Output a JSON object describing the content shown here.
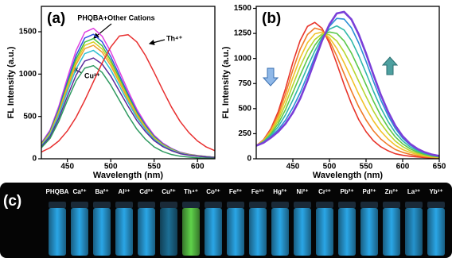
{
  "chart_data": [
    {
      "type": "line",
      "panel_label": "(a)",
      "x_label": "Wavelength (nm)",
      "y_label": "FL Intensity (a.u.)",
      "xlim": [
        420,
        620
      ],
      "ylim": [
        0,
        1800
      ],
      "xticks": [
        450,
        500,
        550,
        600
      ],
      "yticks": [
        0,
        500,
        1000,
        1500
      ],
      "annotations": [
        "PHQBA+Other Cations",
        "Th⁴⁺",
        "Cu²⁺"
      ],
      "x": [
        420,
        430,
        440,
        450,
        460,
        470,
        480,
        490,
        500,
        510,
        520,
        530,
        540,
        550,
        560,
        570,
        580,
        590,
        600,
        610,
        620
      ],
      "series": [
        {
          "color": "#e040e0",
          "values": [
            185,
            339,
            616,
            955,
            1278,
            1494,
            1540,
            1448,
            1263,
            1032,
            801,
            585,
            416,
            277,
            185,
            123,
            77,
            54,
            39,
            28,
            18
          ]
        },
        {
          "color": "#3050e0",
          "values": [
            176,
            323,
            588,
            911,
            1220,
            1426,
            1470,
            1382,
            1205,
            985,
            764,
            559,
            397,
            265,
            176,
            118,
            74,
            51,
            37,
            26,
            18
          ]
        },
        {
          "color": "#40c040",
          "values": [
            170,
            312,
            568,
            880,
            1179,
            1377,
            1420,
            1335,
            1164,
            951,
            738,
            540,
            383,
            256,
            170,
            114,
            71,
            50,
            36,
            26,
            17
          ]
        },
        {
          "color": "#d8d020",
          "values": [
            166,
            304,
            552,
            856,
            1145,
            1339,
            1380,
            1297,
            1132,
            925,
            718,
            524,
            373,
            248,
            166,
            110,
            69,
            48,
            35,
            25,
            17
          ]
        },
        {
          "color": "#f0a030",
          "values": [
            161,
            295,
            536,
            831,
            1112,
            1300,
            1340,
            1260,
            1099,
            898,
            697,
            509,
            362,
            241,
            161,
            107,
            67,
            47,
            34,
            24,
            16
          ]
        },
        {
          "color": "#30c0d0",
          "values": [
            154,
            282,
            512,
            794,
            1062,
            1242,
            1280,
            1203,
            1050,
            858,
            666,
            486,
            346,
            230,
            154,
            102,
            64,
            45,
            32,
            23,
            15
          ]
        },
        {
          "color": "#5a2a9a",
          "values": [
            143,
            262,
            476,
            738,
            988,
            1154,
            1190,
            1119,
            976,
            797,
            619,
            452,
            321,
            214,
            143,
            95,
            60,
            42,
            30,
            21,
            14
          ]
        },
        {
          "color": "#2f9a60",
          "values": [
            130,
            240,
            440,
            690,
            920,
            1070,
            1100,
            1020,
            870,
            690,
            510,
            350,
            230,
            140,
            85,
            50,
            30,
            20,
            12,
            8,
            5
          ]
        },
        {
          "color": "#e83030",
          "values": [
            80,
            130,
            210,
            330,
            490,
            690,
            910,
            1130,
            1320,
            1450,
            1465,
            1380,
            1220,
            1020,
            810,
            610,
            440,
            310,
            210,
            140,
            95
          ]
        }
      ]
    },
    {
      "type": "line",
      "panel_label": "(b)",
      "x_label": "Wavelength (nm)",
      "y_label": "FL Intensity (a.u.)",
      "xlim": [
        400,
        650
      ],
      "ylim": [
        0,
        1520
      ],
      "xticks": [
        450,
        500,
        550,
        600,
        650
      ],
      "yticks": [
        0,
        250,
        500,
        750,
        1000,
        1250,
        1500
      ],
      "x": [
        400,
        410,
        420,
        430,
        440,
        450,
        460,
        470,
        480,
        490,
        500,
        510,
        520,
        530,
        540,
        550,
        560,
        570,
        580,
        590,
        600,
        610,
        620,
        630,
        640,
        650
      ],
      "series": [
        {
          "color": "#e8352b",
          "values": [
            130,
            190,
            300,
            470,
            700,
            960,
            1180,
            1320,
            1360,
            1300,
            1150,
            950,
            740,
            550,
            390,
            270,
            180,
            120,
            80,
            50,
            35,
            25,
            18,
            12,
            8,
            5
          ]
        },
        {
          "color": "#f07c2a",
          "values": [
            130,
            186,
            287,
            440,
            648,
            885,
            1093,
            1239,
            1303,
            1282,
            1179,
            1025,
            849,
            676,
            518,
            387,
            279,
            198,
            139,
            92,
            64,
            44,
            30,
            20,
            13,
            8
          ]
        },
        {
          "color": "#f2c22a",
          "values": [
            130,
            181,
            273,
            410,
            595,
            810,
            1006,
            1158,
            1246,
            1264,
            1207,
            1100,
            958,
            802,
            645,
            504,
            378,
            276,
            197,
            134,
            92,
            63,
            43,
            28,
            18,
            12
          ]
        },
        {
          "color": "#b8d630",
          "values": [
            130,
            177,
            260,
            380,
            543,
            735,
            919,
            1077,
            1189,
            1246,
            1236,
            1175,
            1066,
            928,
            773,
            621,
            477,
            354,
            256,
            176,
            121,
            81,
            55,
            36,
            23,
            15
          ]
        },
        {
          "color": "#5cc84a",
          "values": [
            130,
            172,
            246,
            350,
            490,
            660,
            832,
            996,
            1132,
            1228,
            1264,
            1250,
            1175,
            1054,
            900,
            738,
            576,
            432,
            314,
            218,
            149,
            100,
            67,
            44,
            28,
            19
          ]
        },
        {
          "color": "#2fb8a8",
          "values": [
            130,
            168,
            233,
            320,
            438,
            585,
            745,
            915,
            1075,
            1210,
            1293,
            1325,
            1284,
            1180,
            1028,
            855,
            675,
            510,
            373,
            260,
            178,
            119,
            80,
            52,
            34,
            22
          ]
        },
        {
          "color": "#2b8fd6",
          "values": [
            130,
            163,
            219,
            290,
            385,
            510,
            658,
            834,
            1018,
            1192,
            1321,
            1400,
            1393,
            1306,
            1155,
            972,
            774,
            588,
            431,
            302,
            206,
            138,
            92,
            60,
            39,
            26
          ]
        },
        {
          "color": "#7a3fd8",
          "values": [
            130,
            160,
            210,
            270,
            350,
            460,
            600,
            780,
            980,
            1180,
            1340,
            1450,
            1465,
            1390,
            1240,
            1050,
            840,
            640,
            470,
            330,
            225,
            150,
            100,
            65,
            42,
            28
          ]
        }
      ]
    }
  ],
  "panel_c": {
    "label": "(c)",
    "vials": [
      {
        "label": "PHQBA",
        "color": "#2aa6e6"
      },
      {
        "label": "Ca²⁺",
        "color": "#2aa6e6"
      },
      {
        "label": "Ba²⁺",
        "color": "#2aa6e6"
      },
      {
        "label": "Al³⁺",
        "color": "#2aa6e6"
      },
      {
        "label": "Cd²⁺",
        "color": "#2aa6e6"
      },
      {
        "label": "Cu²⁺",
        "color": "#1c6f96"
      },
      {
        "label": "Th⁴⁺",
        "color": "#5fd24a"
      },
      {
        "label": "Co²⁺",
        "color": "#2aa6e6"
      },
      {
        "label": "Fe²⁺",
        "color": "#2aa6e6"
      },
      {
        "label": "Fe³⁺",
        "color": "#2aa6e6"
      },
      {
        "label": "Hg²⁺",
        "color": "#2aa6e6"
      },
      {
        "label": "Ni²⁺",
        "color": "#2aa6e6"
      },
      {
        "label": "Cr³⁺",
        "color": "#2aa6e6"
      },
      {
        "label": "Pb²⁺",
        "color": "#2aa6e6"
      },
      {
        "label": "Pd²⁺",
        "color": "#2aa6e6"
      },
      {
        "label": "Zn²⁺",
        "color": "#2aa6e6"
      },
      {
        "label": "La³⁺",
        "color": "#2593cc"
      },
      {
        "label": "Yb³⁺",
        "color": "#2aa6e6"
      }
    ]
  }
}
